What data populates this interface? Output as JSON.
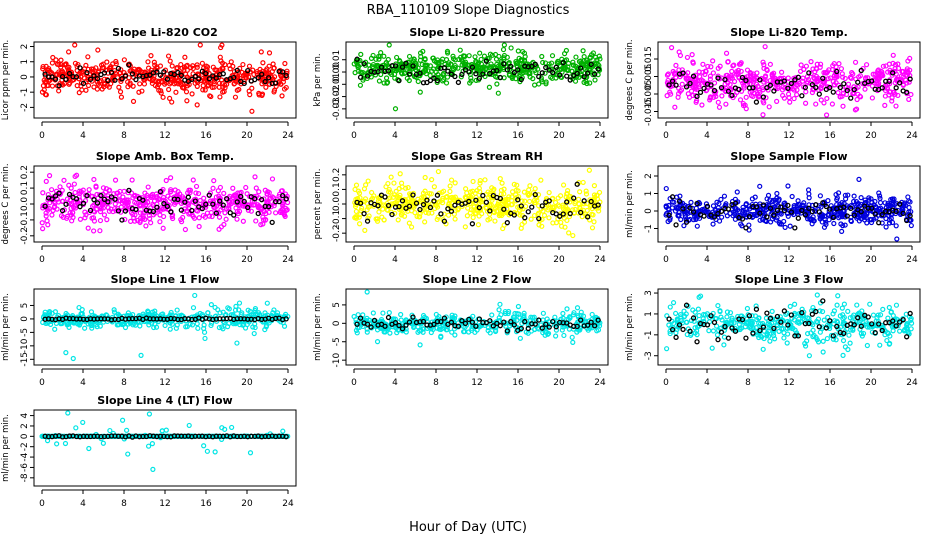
{
  "figure": {
    "title": "RBA_110109  Slope Diagnostics",
    "xlabel": "Hour of Day (UTC)",
    "x_ticks": [
      "0",
      "4",
      "8",
      "12",
      "16",
      "20",
      "24"
    ]
  },
  "chart_data": [
    {
      "type": "scatter",
      "title": "Slope Li-820 CO2",
      "ylabel": "Licor ppm per min.",
      "xlim": [
        0,
        24
      ],
      "ylim": [
        -2.5,
        2.1
      ],
      "yticks": [
        -2,
        -1,
        0,
        1,
        2
      ],
      "ytick_labels": [
        "-2",
        "-1",
        "0",
        "1",
        "2"
      ],
      "series": [
        {
          "name": "all",
          "color": "#ff0000",
          "spread": 0.55,
          "mean": 0.0,
          "outlier_max": 2.3
        },
        {
          "name": "black",
          "color": "#000000",
          "spread": 0.25,
          "mean": 0.0
        }
      ]
    },
    {
      "type": "scatter",
      "title": "Slope Li-820 Pressure",
      "ylabel": "kPa per min.",
      "xlim": [
        0,
        24
      ],
      "ylim": [
        -0.035,
        0.022
      ],
      "yticks": [
        -0.03,
        -0.02,
        -0.01,
        0.0,
        0.01
      ],
      "ytick_labels": [
        "-0.03",
        "-0.02",
        "-0.01",
        "0.00",
        "0.01"
      ],
      "series": [
        {
          "name": "all",
          "color": "#00b000",
          "spread": 0.006,
          "mean": 0.003,
          "outlier_max": 0.03
        },
        {
          "name": "black",
          "color": "#000000",
          "spread": 0.004,
          "mean": 0.0
        }
      ]
    },
    {
      "type": "scatter",
      "title": "Slope Li-820 Temp.",
      "ylabel": "degrees C per min.",
      "xlim": [
        0,
        24
      ],
      "ylim": [
        -0.017,
        0.023
      ],
      "yticks": [
        -0.015,
        -0.005,
        0.005,
        0.015
      ],
      "ytick_labels": [
        "-0.015",
        "-0.005",
        "0.005",
        "0.015"
      ],
      "secondary_ticks": [
        -0.01,
        0.0,
        0.01,
        0.02
      ],
      "secondary_labels": [
        "-0.010",
        "0.000",
        "0.010",
        "0.020"
      ],
      "series": [
        {
          "name": "all",
          "color": "#ff00ff",
          "spread": 0.006,
          "mean": 0.002,
          "outlier_max": 0.02
        },
        {
          "name": "black",
          "color": "#000000",
          "spread": 0.004,
          "mean": 0.0
        }
      ]
    },
    {
      "type": "scatter",
      "title": "Slope Amb. Box Temp.",
      "ylabel": "degrees C per min.",
      "xlim": [
        0,
        24
      ],
      "ylim": [
        -0.22,
        0.22
      ],
      "yticks": [
        -0.2,
        -0.1,
        0.0,
        0.1,
        0.2
      ],
      "ytick_labels": [
        "-0.2",
        "-0.1",
        "0.0",
        "0.1",
        "0.2"
      ],
      "series": [
        {
          "name": "all",
          "color": "#ff00ff",
          "spread": 0.06,
          "mean": 0.0,
          "outlier_max": 0.2
        },
        {
          "name": "black",
          "color": "#000000",
          "spread": 0.05,
          "mean": 0.0
        }
      ]
    },
    {
      "type": "scatter",
      "title": "Slope Gas Stream RH",
      "ylabel": "percent per min.",
      "xlim": [
        0,
        24
      ],
      "ylim": [
        -0.24,
        0.24
      ],
      "yticks": [
        -0.2,
        -0.1,
        0.0,
        0.1,
        0.2
      ],
      "ytick_labels": [
        "-0.2",
        "-0.1",
        "0.0",
        "0.1",
        "0.2"
      ],
      "series": [
        {
          "name": "all",
          "color": "#ffff00",
          "spread": 0.07,
          "mean": 0.0,
          "outlier_max": 0.22
        },
        {
          "name": "black",
          "color": "#000000",
          "spread": 0.05,
          "mean": 0.0
        }
      ]
    },
    {
      "type": "scatter",
      "title": "Slope Sample Flow",
      "ylabel": "ml/min per min.",
      "xlim": [
        0,
        24
      ],
      "ylim": [
        -1.6,
        2.4
      ],
      "yticks": [
        -1,
        0,
        1,
        2
      ],
      "ytick_labels": [
        "-1",
        "0",
        "1",
        "2"
      ],
      "series": [
        {
          "name": "all",
          "color": "#0000dd",
          "spread": 0.4,
          "mean": 0.0,
          "outlier_max": 2.2
        },
        {
          "name": "black",
          "color": "#000000",
          "spread": 0.35,
          "mean": 0.0
        }
      ]
    },
    {
      "type": "scatter",
      "title": "Slope Line 1 Flow",
      "ylabel": "ml/min per min.",
      "xlim": [
        0,
        24
      ],
      "ylim": [
        -16,
        10
      ],
      "yticks": [
        -15,
        -10,
        -5,
        0,
        5
      ],
      "ytick_labels": [
        "-15",
        "-10",
        "-5",
        "0",
        "5"
      ],
      "series": [
        {
          "name": "all",
          "color": "#00e5e5",
          "spread": 1.5,
          "mean": 0.0,
          "outlier_max": 15
        },
        {
          "name": "black",
          "color": "#000000",
          "spread": 0.3,
          "mean": 0.0
        }
      ]
    },
    {
      "type": "scatter",
      "title": "Slope Line 2 Flow",
      "ylabel": "ml/min per min.",
      "xlim": [
        0,
        24
      ],
      "ylim": [
        -10.5,
        8.5
      ],
      "yticks": [
        -10,
        -5,
        0,
        5
      ],
      "ytick_labels": [
        "-10",
        "-5",
        "0",
        "5"
      ],
      "series": [
        {
          "name": "all",
          "color": "#00e5e5",
          "spread": 1.2,
          "mean": 0.0,
          "outlier_max": 9
        },
        {
          "name": "black",
          "color": "#000000",
          "spread": 0.8,
          "mean": 0.0
        }
      ]
    },
    {
      "type": "scatter",
      "title": "Slope Line 3 Flow",
      "ylabel": "ml/min per min.",
      "xlim": [
        0,
        24
      ],
      "ylim": [
        -3.6,
        3.1
      ],
      "yticks": [
        -3,
        -1,
        1,
        3
      ],
      "ytick_labels": [
        "-3",
        "-1",
        "1",
        "3"
      ],
      "series": [
        {
          "name": "all",
          "color": "#00e5e5",
          "spread": 0.7,
          "mean": 0.0,
          "outlier_max": 3
        },
        {
          "name": "black",
          "color": "#000000",
          "spread": 0.8,
          "mean": 0.0
        }
      ]
    },
    {
      "type": "scatter",
      "title": "Slope Line 4 (LT) Flow",
      "ylabel": "ml/min per min.",
      "xlim": [
        0,
        24
      ],
      "ylim": [
        -9,
        4.5
      ],
      "yticks": [
        -8,
        -6,
        -4,
        -2,
        0,
        2,
        4
      ],
      "ytick_labels": [
        "-8",
        "-6",
        "-4",
        "-2",
        "0",
        "2",
        "4"
      ],
      "series": [
        {
          "name": "all",
          "color": "#00e5e5",
          "spread": 0.3,
          "mean": 0.0,
          "outlier_max": 9
        },
        {
          "name": "black",
          "color": "#000000",
          "spread": 0.1,
          "mean": 0.0
        }
      ]
    }
  ]
}
